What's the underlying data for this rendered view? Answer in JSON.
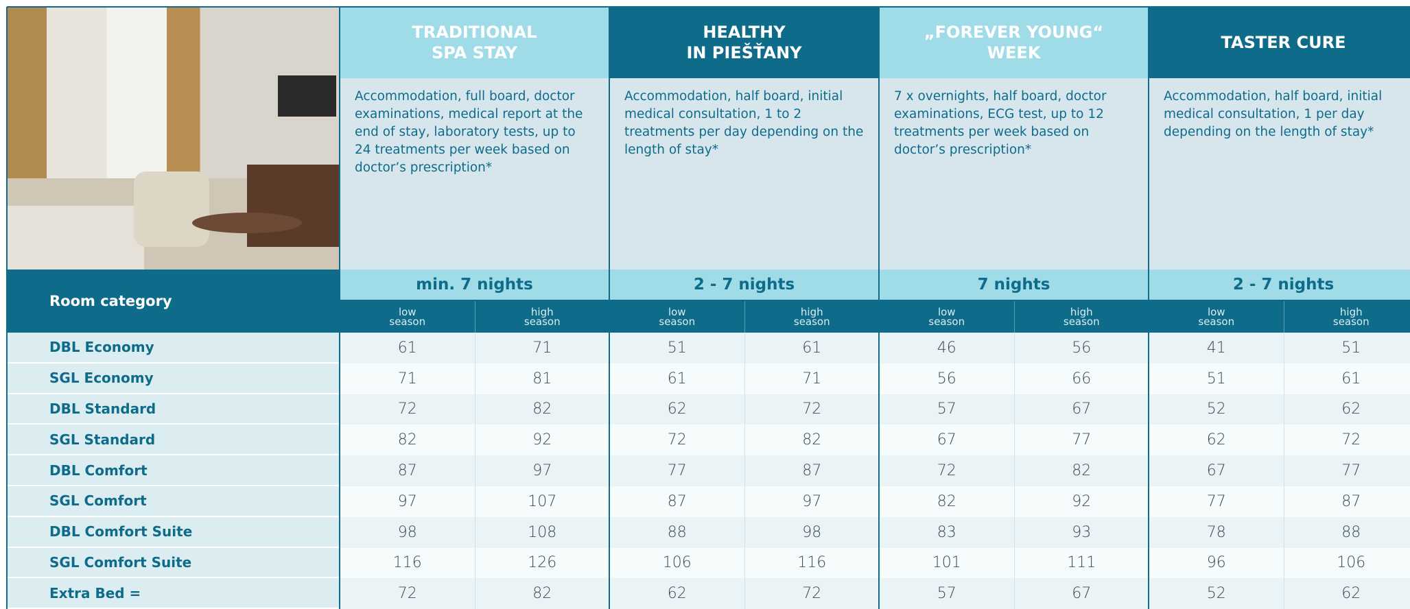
{
  "packages": [
    {
      "title_lines": [
        "TRADITIONAL",
        "SPA STAY"
      ],
      "description": "Accommodation, full board, doctor examinations, medical report at the end of stay, laboratory tests, up to 24 treatments per week based on doctor’s prescription*",
      "nights": "min. 7 nights"
    },
    {
      "title_lines": [
        "HEALTHY",
        "IN PIEŠŤANY"
      ],
      "description": "Accommodation, half  board, initial medical consultation, 1 to 2 treatments per day depending on the length of stay*",
      "nights": "2 - 7 nights"
    },
    {
      "title_lines": [
        "„FOREVER YOUNG“",
        "WEEK"
      ],
      "description": "7 x overnights, half board, doctor examinations, ECG test, up to 12 treatments per week based on doctor’s prescription*",
      "nights": "7 nights"
    },
    {
      "title_lines": [
        "TASTER CURE"
      ],
      "description": "Accommodation, half board, initial medical consultation, 1 per day depending on the length of stay*",
      "nights": "2 - 7 nights"
    }
  ],
  "seasons": [
    "low season",
    "high season"
  ],
  "row_header": "Room category",
  "rows": [
    {
      "name": "DBL Economy",
      "values": [
        61,
        71,
        51,
        61,
        46,
        56,
        41,
        51
      ]
    },
    {
      "name": "SGL Economy",
      "values": [
        71,
        81,
        61,
        71,
        56,
        66,
        51,
        61
      ]
    },
    {
      "name": "DBL Standard",
      "values": [
        72,
        82,
        62,
        72,
        57,
        67,
        52,
        62
      ]
    },
    {
      "name": "SGL Standard",
      "values": [
        82,
        92,
        72,
        82,
        67,
        77,
        62,
        72
      ]
    },
    {
      "name": "DBL Comfort",
      "values": [
        87,
        97,
        77,
        87,
        72,
        82,
        67,
        77
      ]
    },
    {
      "name": "SGL Comfort",
      "values": [
        97,
        107,
        87,
        97,
        82,
        92,
        77,
        87
      ]
    },
    {
      "name": "DBL Comfort Suite",
      "values": [
        98,
        108,
        88,
        98,
        83,
        93,
        78,
        88
      ]
    },
    {
      "name": "SGL Comfort Suite",
      "values": [
        116,
        126,
        106,
        116,
        101,
        111,
        96,
        106
      ]
    },
    {
      "name": "Extra Bed =",
      "values": [
        72,
        82,
        62,
        72,
        57,
        67,
        52,
        62
      ]
    }
  ]
}
